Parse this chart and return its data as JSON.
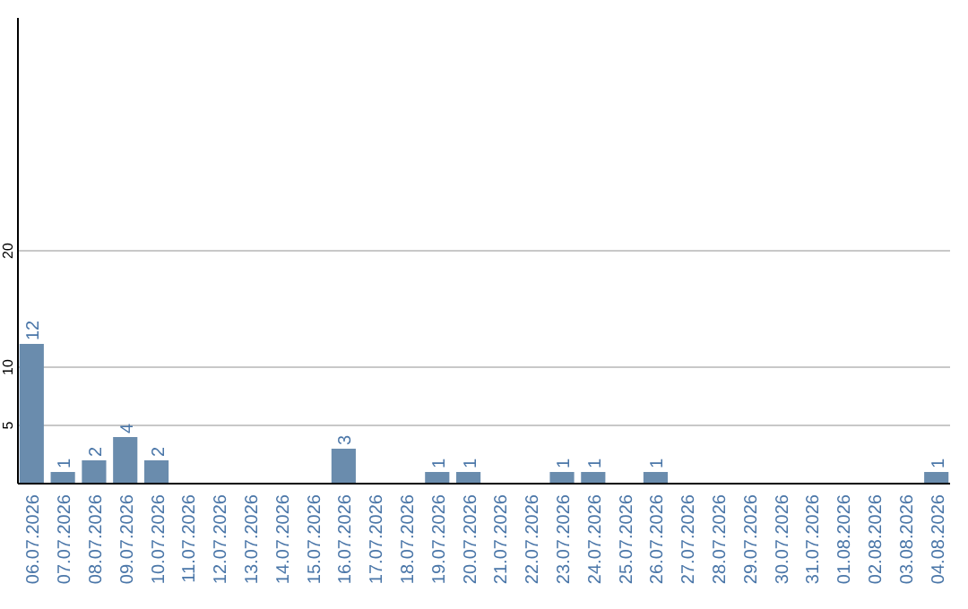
{
  "chart_data": {
    "type": "bar",
    "categories": [
      "06.07.2026",
      "07.07.2026",
      "08.07.2026",
      "09.07.2026",
      "10.07.2026",
      "11.07.2026",
      "12.07.2026",
      "13.07.2026",
      "14.07.2026",
      "15.07.2026",
      "16.07.2026",
      "17.07.2026",
      "18.07.2026",
      "19.07.2026",
      "20.07.2026",
      "21.07.2026",
      "22.07.2026",
      "23.07.2026",
      "24.07.2026",
      "25.07.2026",
      "26.07.2026",
      "27.07.2026",
      "28.07.2026",
      "29.07.2026",
      "30.07.2026",
      "31.07.2026",
      "01.08.2026",
      "02.08.2026",
      "03.08.2026",
      "04.08.2026"
    ],
    "values": [
      12,
      1,
      2,
      4,
      2,
      0,
      0,
      0,
      0,
      0,
      3,
      0,
      0,
      1,
      1,
      0,
      0,
      1,
      1,
      0,
      1,
      0,
      0,
      0,
      0,
      0,
      0,
      0,
      0,
      1
    ],
    "value_labels": [
      "12",
      "1",
      "2",
      "4",
      "2",
      null,
      null,
      null,
      null,
      null,
      "3",
      null,
      null,
      "1",
      "1",
      null,
      null,
      "1",
      "1",
      null,
      "1",
      null,
      null,
      null,
      null,
      null,
      null,
      null,
      null,
      "1"
    ],
    "color": "#6a8cad",
    "ylim": [
      0,
      40
    ],
    "yticks": [
      5,
      10,
      20
    ],
    "grid": "y"
  }
}
